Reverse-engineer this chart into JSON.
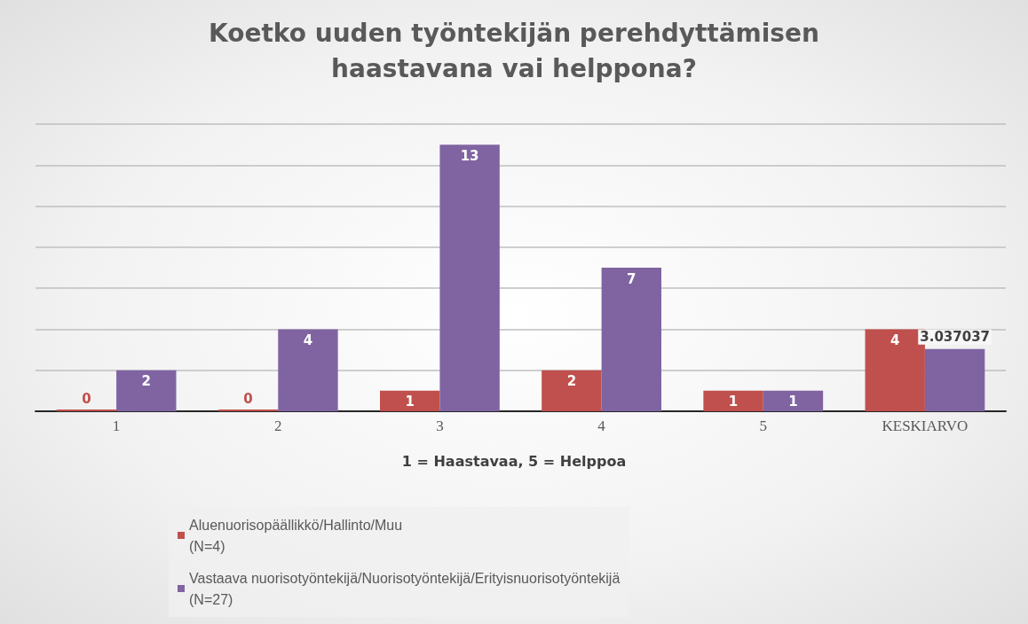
{
  "chart_data": {
    "type": "bar",
    "title": "Koetko uuden työntekijän perehdyttämisen\nhaastavana vai helppona?",
    "xlabel": "1 = Haastavaa, 5 = Helppoa",
    "categories": [
      "1",
      "2",
      "3",
      "4",
      "5",
      "KESKIARVO"
    ],
    "series": [
      {
        "name": "Aluenuorisopäällikkö/Hallinto/Muu\n(N=4)",
        "color": "#c0504d",
        "values": [
          0,
          0,
          1,
          2,
          1,
          4
        ]
      },
      {
        "name": "Vastaava nuorisotyöntekijä/Nuorisotyöntekijä/Erityisnuorisotyöntekijä\n(N=27)",
        "color": "#8064a2",
        "values": [
          2,
          4,
          13,
          7,
          1,
          3.037037
        ]
      }
    ],
    "ylim": [
      0,
      14
    ],
    "yticks": [
      {
        "value": 0,
        "label": null
      },
      {
        "value": 2,
        "label": null
      },
      {
        "value": 4,
        "label": null
      },
      {
        "value": 6,
        "label": null
      },
      {
        "value": 8,
        "label": null
      },
      {
        "value": 10,
        "label": null
      },
      {
        "value": 12,
        "label": null
      },
      {
        "value": 14,
        "label": null
      }
    ],
    "tick_labels": "x",
    "grid": "y",
    "legend": "bottom",
    "data_labels": true
  }
}
